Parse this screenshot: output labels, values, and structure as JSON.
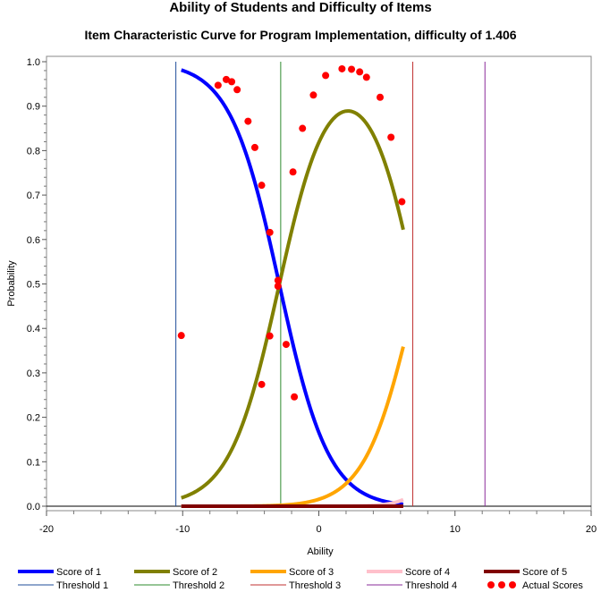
{
  "chart_data": {
    "type": "line",
    "title": "Ability of Students and Difficulty of Items",
    "subtitle": "Item Characteristic Curve for Program Implementation, difficulty of 1.406",
    "xlabel": "Ability",
    "ylabel": "Probability",
    "xlim": [
      -20,
      20
    ],
    "ylim": [
      0,
      1
    ],
    "xticks": [
      -20,
      -10,
      0,
      10,
      20
    ],
    "yticks": [
      "0.0",
      "0.1",
      "0.2",
      "0.3",
      "0.4",
      "0.5",
      "0.6",
      "0.7",
      "0.8",
      "0.9",
      "1.0"
    ],
    "grid": false,
    "legend_position": "bottom",
    "curve_x_range": [
      -10.1,
      6.2
    ],
    "series": [
      {
        "name": "Score of 1",
        "color": "#0000ff",
        "key": "s1"
      },
      {
        "name": "Score of 2",
        "color": "#808000",
        "key": "s2"
      },
      {
        "name": "Score of 3",
        "color": "#ffa500",
        "key": "s3"
      },
      {
        "name": "Score of 4",
        "color": "#ffc0cb",
        "key": "s4"
      },
      {
        "name": "Score of 5",
        "color": "#800000",
        "key": "s5"
      }
    ],
    "thresholds": [
      {
        "name": "Threshold 1",
        "x": -10.5,
        "color": "#1f4e9a"
      },
      {
        "name": "Threshold 2",
        "x": -2.8,
        "color": "#2e8b2e"
      },
      {
        "name": "Threshold 3",
        "x": 6.9,
        "color": "#c03030"
      },
      {
        "name": "Threshold 4",
        "x": 12.2,
        "color": "#8a2b9a"
      }
    ],
    "actual_scores": {
      "name": "Actual Scores",
      "color": "#ff0000",
      "points": [
        [
          -10.1,
          0.384
        ],
        [
          -7.4,
          0.947
        ],
        [
          -6.8,
          0.96
        ],
        [
          -6.4,
          0.955
        ],
        [
          -6.0,
          0.937
        ],
        [
          -5.2,
          0.866
        ],
        [
          -4.7,
          0.807
        ],
        [
          -4.2,
          0.722
        ],
        [
          -3.6,
          0.616
        ],
        [
          -3.0,
          0.508
        ],
        [
          -3.0,
          0.495
        ],
        [
          -2.4,
          0.364
        ],
        [
          -1.8,
          0.246
        ],
        [
          -4.2,
          0.274
        ],
        [
          -3.6,
          0.383
        ],
        [
          -1.9,
          0.752
        ],
        [
          -1.2,
          0.85
        ],
        [
          -0.4,
          0.925
        ],
        [
          0.5,
          0.969
        ],
        [
          1.7,
          0.984
        ],
        [
          2.4,
          0.983
        ],
        [
          3.0,
          0.977
        ],
        [
          3.5,
          0.965
        ],
        [
          4.5,
          0.92
        ],
        [
          5.3,
          0.83
        ],
        [
          6.1,
          0.685
        ]
      ]
    }
  }
}
